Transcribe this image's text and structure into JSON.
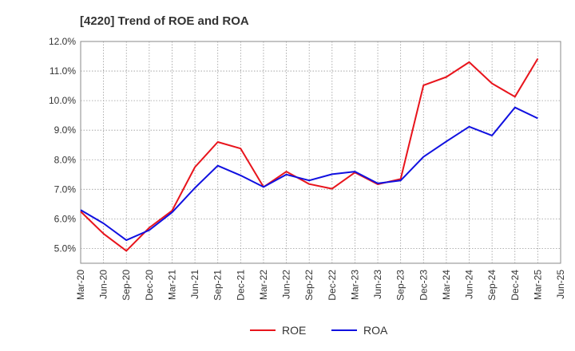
{
  "chart_data": {
    "type": "line",
    "title": "[4220]  Trend of ROE and ROA",
    "xlabel": "",
    "ylabel": "",
    "categories": [
      "Mar-20",
      "Jun-20",
      "Sep-20",
      "Dec-20",
      "Mar-21",
      "Jun-21",
      "Sep-21",
      "Dec-21",
      "Mar-22",
      "Jun-22",
      "Sep-22",
      "Dec-22",
      "Mar-23",
      "Jun-23",
      "Sep-23",
      "Dec-23",
      "Mar-24",
      "Jun-24",
      "Sep-24",
      "Dec-24",
      "Mar-25",
      "Jun-25"
    ],
    "ylim": [
      4.5,
      12.0
    ],
    "yticks": [
      5.0,
      6.0,
      7.0,
      8.0,
      9.0,
      10.0,
      11.0,
      12.0
    ],
    "ytick_labels": [
      "5.0%",
      "6.0%",
      "7.0%",
      "8.0%",
      "9.0%",
      "10.0%",
      "11.0%",
      "12.0%"
    ],
    "grid": true,
    "legend_position": "bottom-center",
    "series": [
      {
        "name": "ROE",
        "color": "#e8141c",
        "values": [
          6.25,
          5.5,
          4.92,
          5.7,
          6.28,
          7.75,
          8.6,
          8.38,
          7.08,
          7.6,
          7.18,
          7.02,
          7.57,
          7.17,
          7.35,
          10.52,
          10.8,
          11.3,
          10.58,
          10.13,
          11.42,
          null
        ]
      },
      {
        "name": "ROA",
        "color": "#1010e0",
        "values": [
          6.3,
          5.85,
          5.28,
          5.62,
          6.22,
          7.05,
          7.8,
          7.47,
          7.08,
          7.5,
          7.3,
          7.51,
          7.6,
          7.2,
          7.3,
          8.1,
          8.62,
          9.12,
          8.82,
          9.77,
          9.4,
          null
        ]
      }
    ]
  }
}
